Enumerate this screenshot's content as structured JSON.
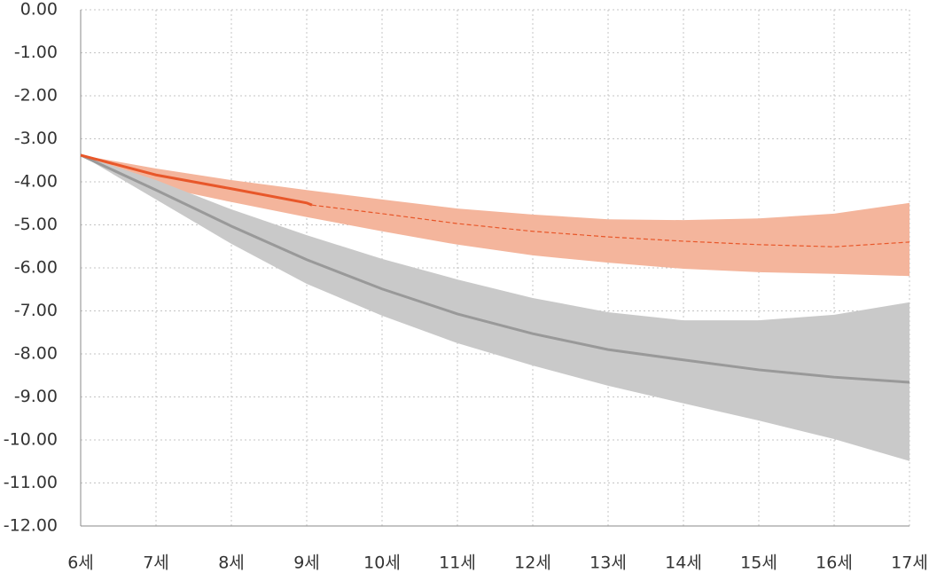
{
  "chart_data": {
    "type": "line",
    "xlim": [
      6,
      17
    ],
    "ylim": [
      -12,
      0
    ],
    "grid": true,
    "xticks": [
      {
        "value": 6,
        "label": "6세"
      },
      {
        "value": 7,
        "label": "7세"
      },
      {
        "value": 8,
        "label": "8세"
      },
      {
        "value": 9,
        "label": "9세"
      },
      {
        "value": 10,
        "label": "10세"
      },
      {
        "value": 11,
        "label": "11세"
      },
      {
        "value": 12,
        "label": "12세"
      },
      {
        "value": 13,
        "label": "13세"
      },
      {
        "value": 14,
        "label": "14세"
      },
      {
        "value": 15,
        "label": "15세"
      },
      {
        "value": 16,
        "label": "16세"
      },
      {
        "value": 17,
        "label": "17세"
      }
    ],
    "yticks": [
      {
        "value": 0,
        "label": "0.00"
      },
      {
        "value": -1,
        "label": "-1.00"
      },
      {
        "value": -2,
        "label": "-2.00"
      },
      {
        "value": -3,
        "label": "-3.00"
      },
      {
        "value": -4,
        "label": "-4.00"
      },
      {
        "value": -5,
        "label": "-5.00"
      },
      {
        "value": -6,
        "label": "-6.00"
      },
      {
        "value": -7,
        "label": "-7.00"
      },
      {
        "value": -8,
        "label": "-8.00"
      },
      {
        "value": -9,
        "label": "-9.00"
      },
      {
        "value": -10,
        "label": "-10.00"
      },
      {
        "value": -11,
        "label": "-11.00"
      },
      {
        "value": -12,
        "label": "-12.00"
      }
    ],
    "series": [
      {
        "kind": "band",
        "color": "#f4b59c",
        "x": [
          6,
          7,
          8,
          9,
          10,
          11,
          12,
          13,
          14,
          15,
          16,
          17
        ],
        "upper": [
          -3.38,
          -3.69,
          -3.96,
          -4.19,
          -4.41,
          -4.62,
          -4.76,
          -4.87,
          -4.89,
          -4.85,
          -4.74,
          -4.49
        ],
        "lower": [
          -3.38,
          -4.1,
          -4.47,
          -4.82,
          -5.15,
          -5.46,
          -5.71,
          -5.88,
          -6.02,
          -6.1,
          -6.14,
          -6.19
        ]
      },
      {
        "kind": "band",
        "color": "#c9c9c9",
        "x": [
          6,
          7,
          8,
          9,
          10,
          11,
          12,
          13,
          14,
          15,
          16,
          17
        ],
        "upper": [
          -3.38,
          -3.96,
          -4.64,
          -5.24,
          -5.79,
          -6.27,
          -6.7,
          -7.03,
          -7.22,
          -7.22,
          -7.09,
          -6.8
        ],
        "lower": [
          -3.38,
          -4.41,
          -5.44,
          -6.37,
          -7.11,
          -7.75,
          -8.27,
          -8.74,
          -9.15,
          -9.55,
          -9.98,
          -10.49
        ]
      },
      {
        "kind": "line",
        "color": "#999999",
        "dash": false,
        "x": [
          6,
          7,
          8,
          9,
          10,
          11,
          12,
          13,
          14,
          15,
          16,
          17
        ],
        "values": [
          -3.38,
          -4.19,
          -5.03,
          -5.81,
          -6.49,
          -7.07,
          -7.53,
          -7.9,
          -8.14,
          -8.37,
          -8.54,
          -8.66
        ]
      },
      {
        "kind": "line",
        "color": "#e8572a",
        "dash": true,
        "x": [
          9.07,
          10,
          11,
          12,
          13,
          14,
          15,
          16,
          17
        ],
        "values": [
          -4.54,
          -4.74,
          -4.97,
          -5.15,
          -5.28,
          -5.38,
          -5.46,
          -5.51,
          -5.4
        ]
      },
      {
        "kind": "line",
        "color": "#e8572a",
        "dash": false,
        "x": [
          6,
          7,
          8,
          9,
          9.07
        ],
        "values": [
          -3.38,
          -3.84,
          -4.16,
          -4.49,
          -4.54
        ]
      }
    ]
  }
}
